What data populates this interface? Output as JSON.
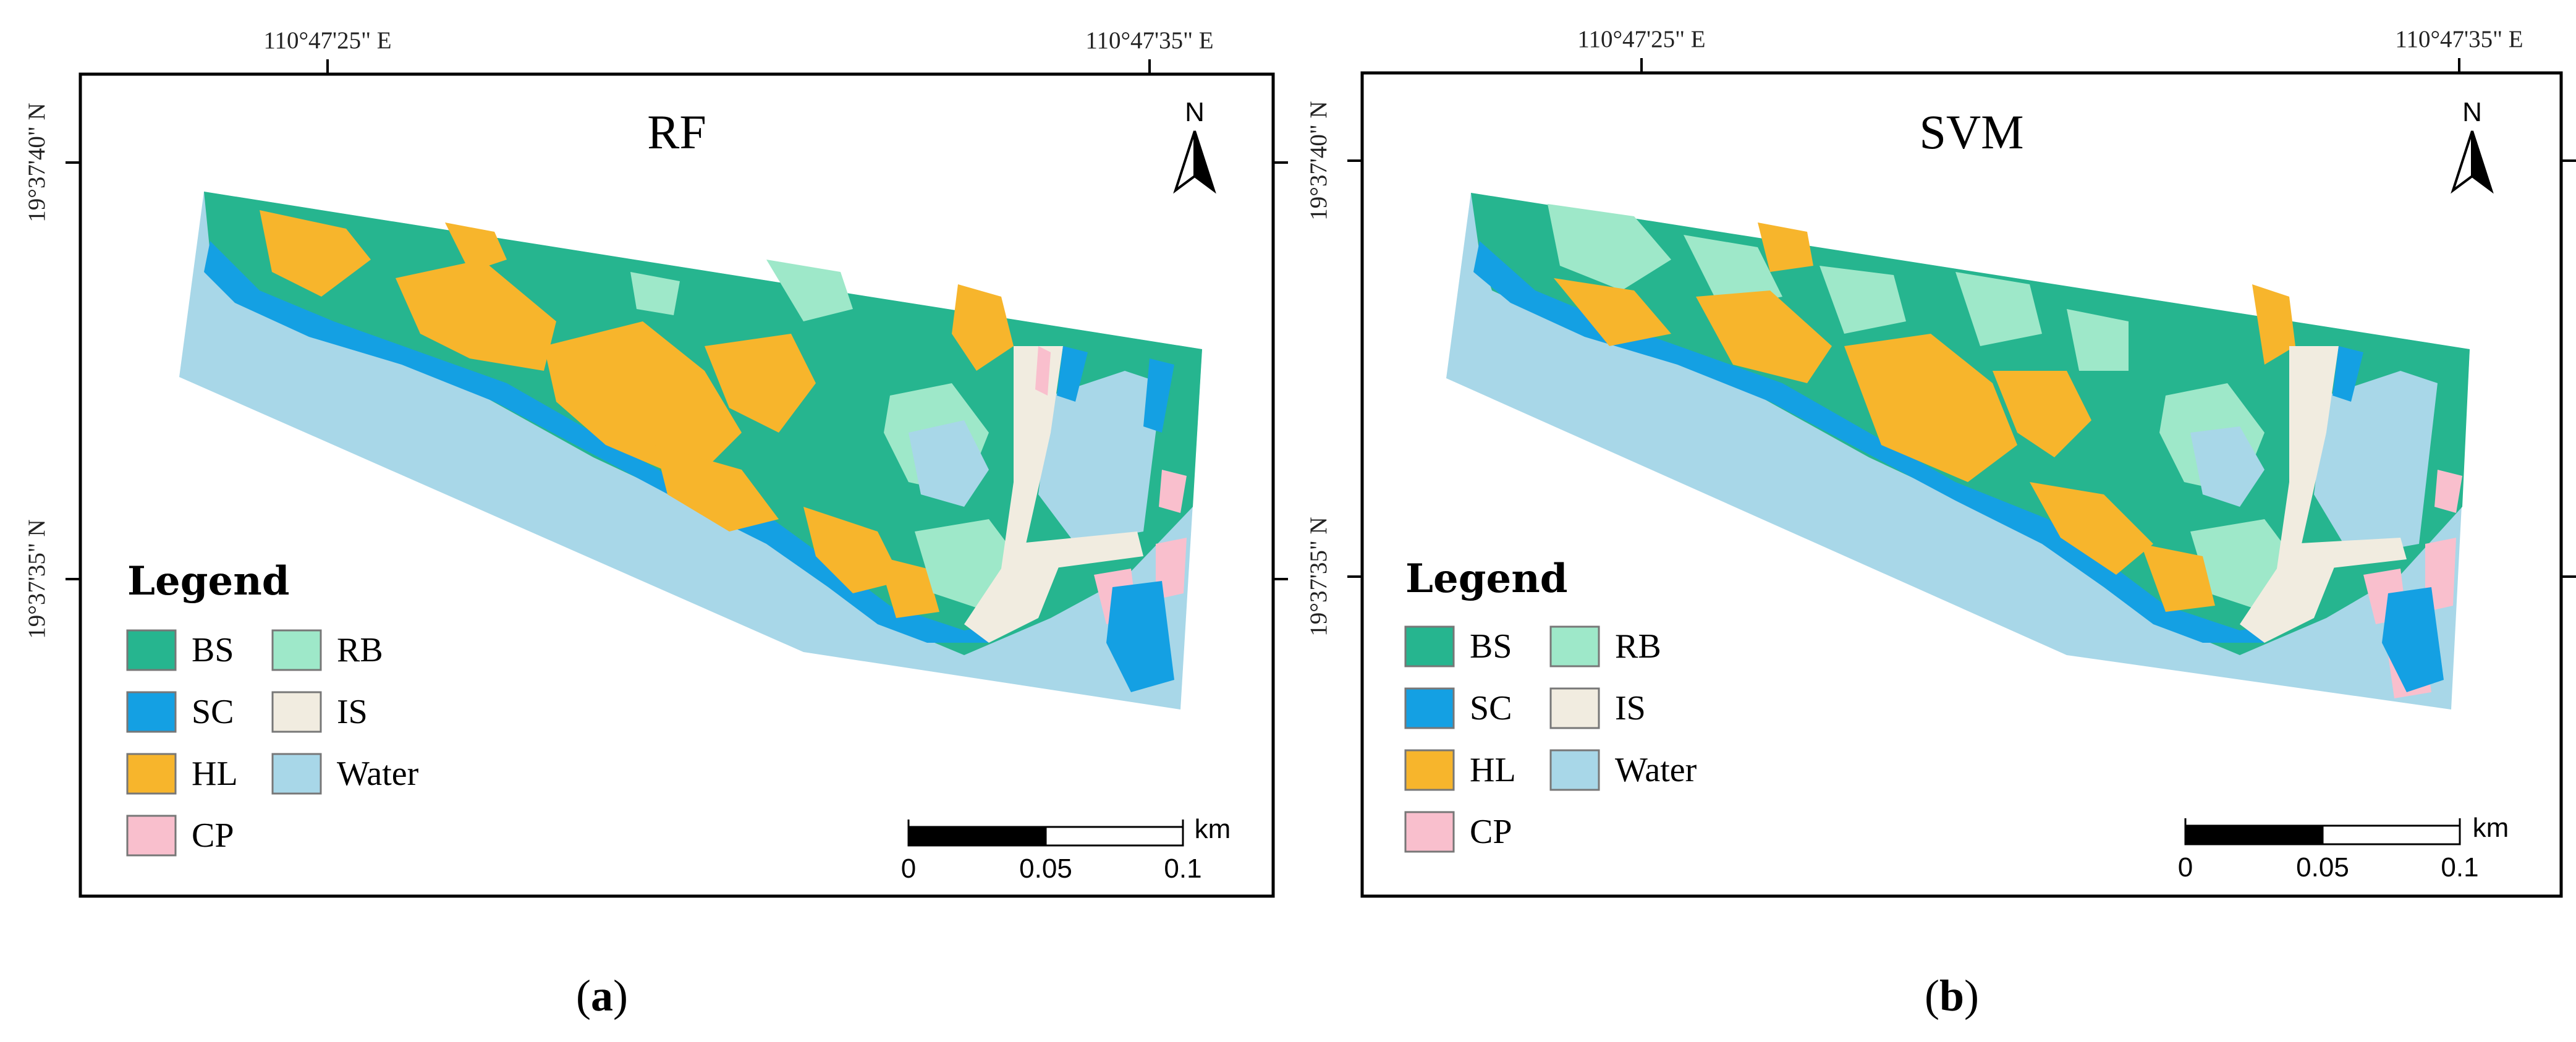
{
  "panels": [
    {
      "title": "RF",
      "caption_letter": "a",
      "coords": {
        "lon_left": "110°47'25\" E",
        "lon_right": "110°47'35\" E",
        "lat_top": "19°37'40\" N",
        "lat_bottom": "19°37'35\" N"
      }
    },
    {
      "title": "SVM",
      "caption_letter": "b",
      "coords": {
        "lon_left": "110°47'25\" E",
        "lon_right": "110°47'35\" E",
        "lat_top": "19°37'40\" N",
        "lat_bottom": "19°37'35\" N"
      }
    }
  ],
  "legend": {
    "title": "Legend",
    "items": [
      {
        "label": "BS",
        "color": "#26b58f"
      },
      {
        "label": "SC",
        "color": "#14a0e3"
      },
      {
        "label": "HL",
        "color": "#f7b52c"
      },
      {
        "label": "CP",
        "color": "#f9bfcd"
      },
      {
        "label": "RB",
        "color": "#9ee8c9"
      },
      {
        "label": "IS",
        "color": "#f1ece0"
      },
      {
        "label": "Water",
        "color": "#a8d7e8"
      }
    ]
  },
  "scale_bar": {
    "unit": "km",
    "ticks": [
      "0",
      "0.05",
      "0.1"
    ]
  },
  "north_arrow": {
    "label": "N"
  }
}
